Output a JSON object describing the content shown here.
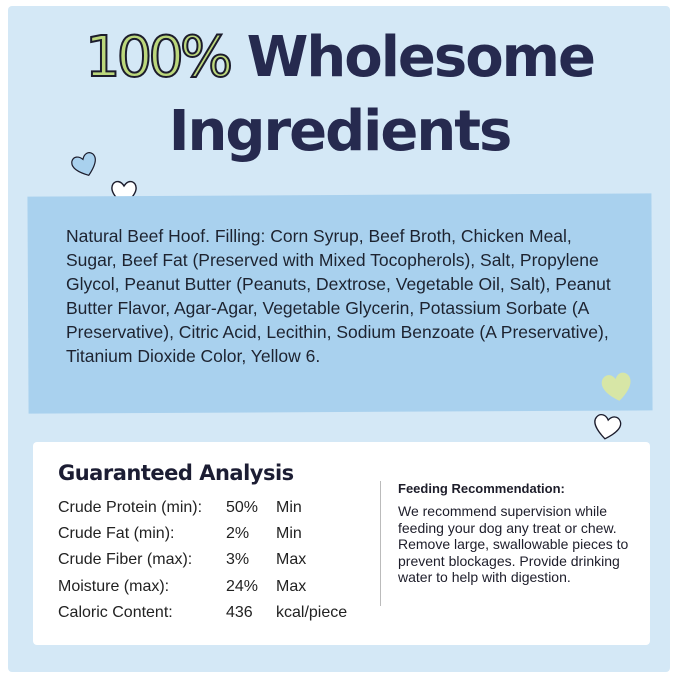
{
  "heading": {
    "line1_highlight": "100%",
    "line1_rest": "Wholesome",
    "line2": "Ingredients"
  },
  "ingredients": "Natural Beef Hoof. Filling: Corn Syrup, Beef Broth, Chicken Meal, Sugar, Beef Fat (Preserved with Mixed Tocopherols), Salt, Propylene Glycol, Peanut Butter (Peanuts, Dextrose, Vegetable Oil, Salt), Peanut Butter Flavor, Agar-Agar, Vegetable Glycerin, Potassium Sorbate (A Preservative), Citric Acid, Lecithin, Sodium Benzoate (A Preservative), Titanium Dioxide Color, Yellow 6.",
  "analysis": {
    "title": "Guaranteed Analysis",
    "rows": [
      {
        "label": "Crude Protein (min):",
        "value": "50%",
        "unit": "Min"
      },
      {
        "label": "Crude Fat (min):",
        "value": "2%",
        "unit": "Min"
      },
      {
        "label": "Crude Fiber (max):",
        "value": "3%",
        "unit": "Max"
      },
      {
        "label": "Moisture (max):",
        "value": "24%",
        "unit": "Max"
      },
      {
        "label": "Caloric Content:",
        "value": "436",
        "unit": "kcal/piece"
      }
    ]
  },
  "feeding": {
    "title": "Feeding Recommendation:",
    "text": "We recommend supervision while feeding your dog any treat or chew. Remove large, swallowable pieces to prevent blockages. Provide drinking water to help with digestion."
  },
  "colors": {
    "background": "#d4e8f6",
    "band": "#a9d1ee",
    "heading": "#262a4f",
    "accent": "#bcd77c"
  },
  "icons": [
    "heart-icon"
  ]
}
